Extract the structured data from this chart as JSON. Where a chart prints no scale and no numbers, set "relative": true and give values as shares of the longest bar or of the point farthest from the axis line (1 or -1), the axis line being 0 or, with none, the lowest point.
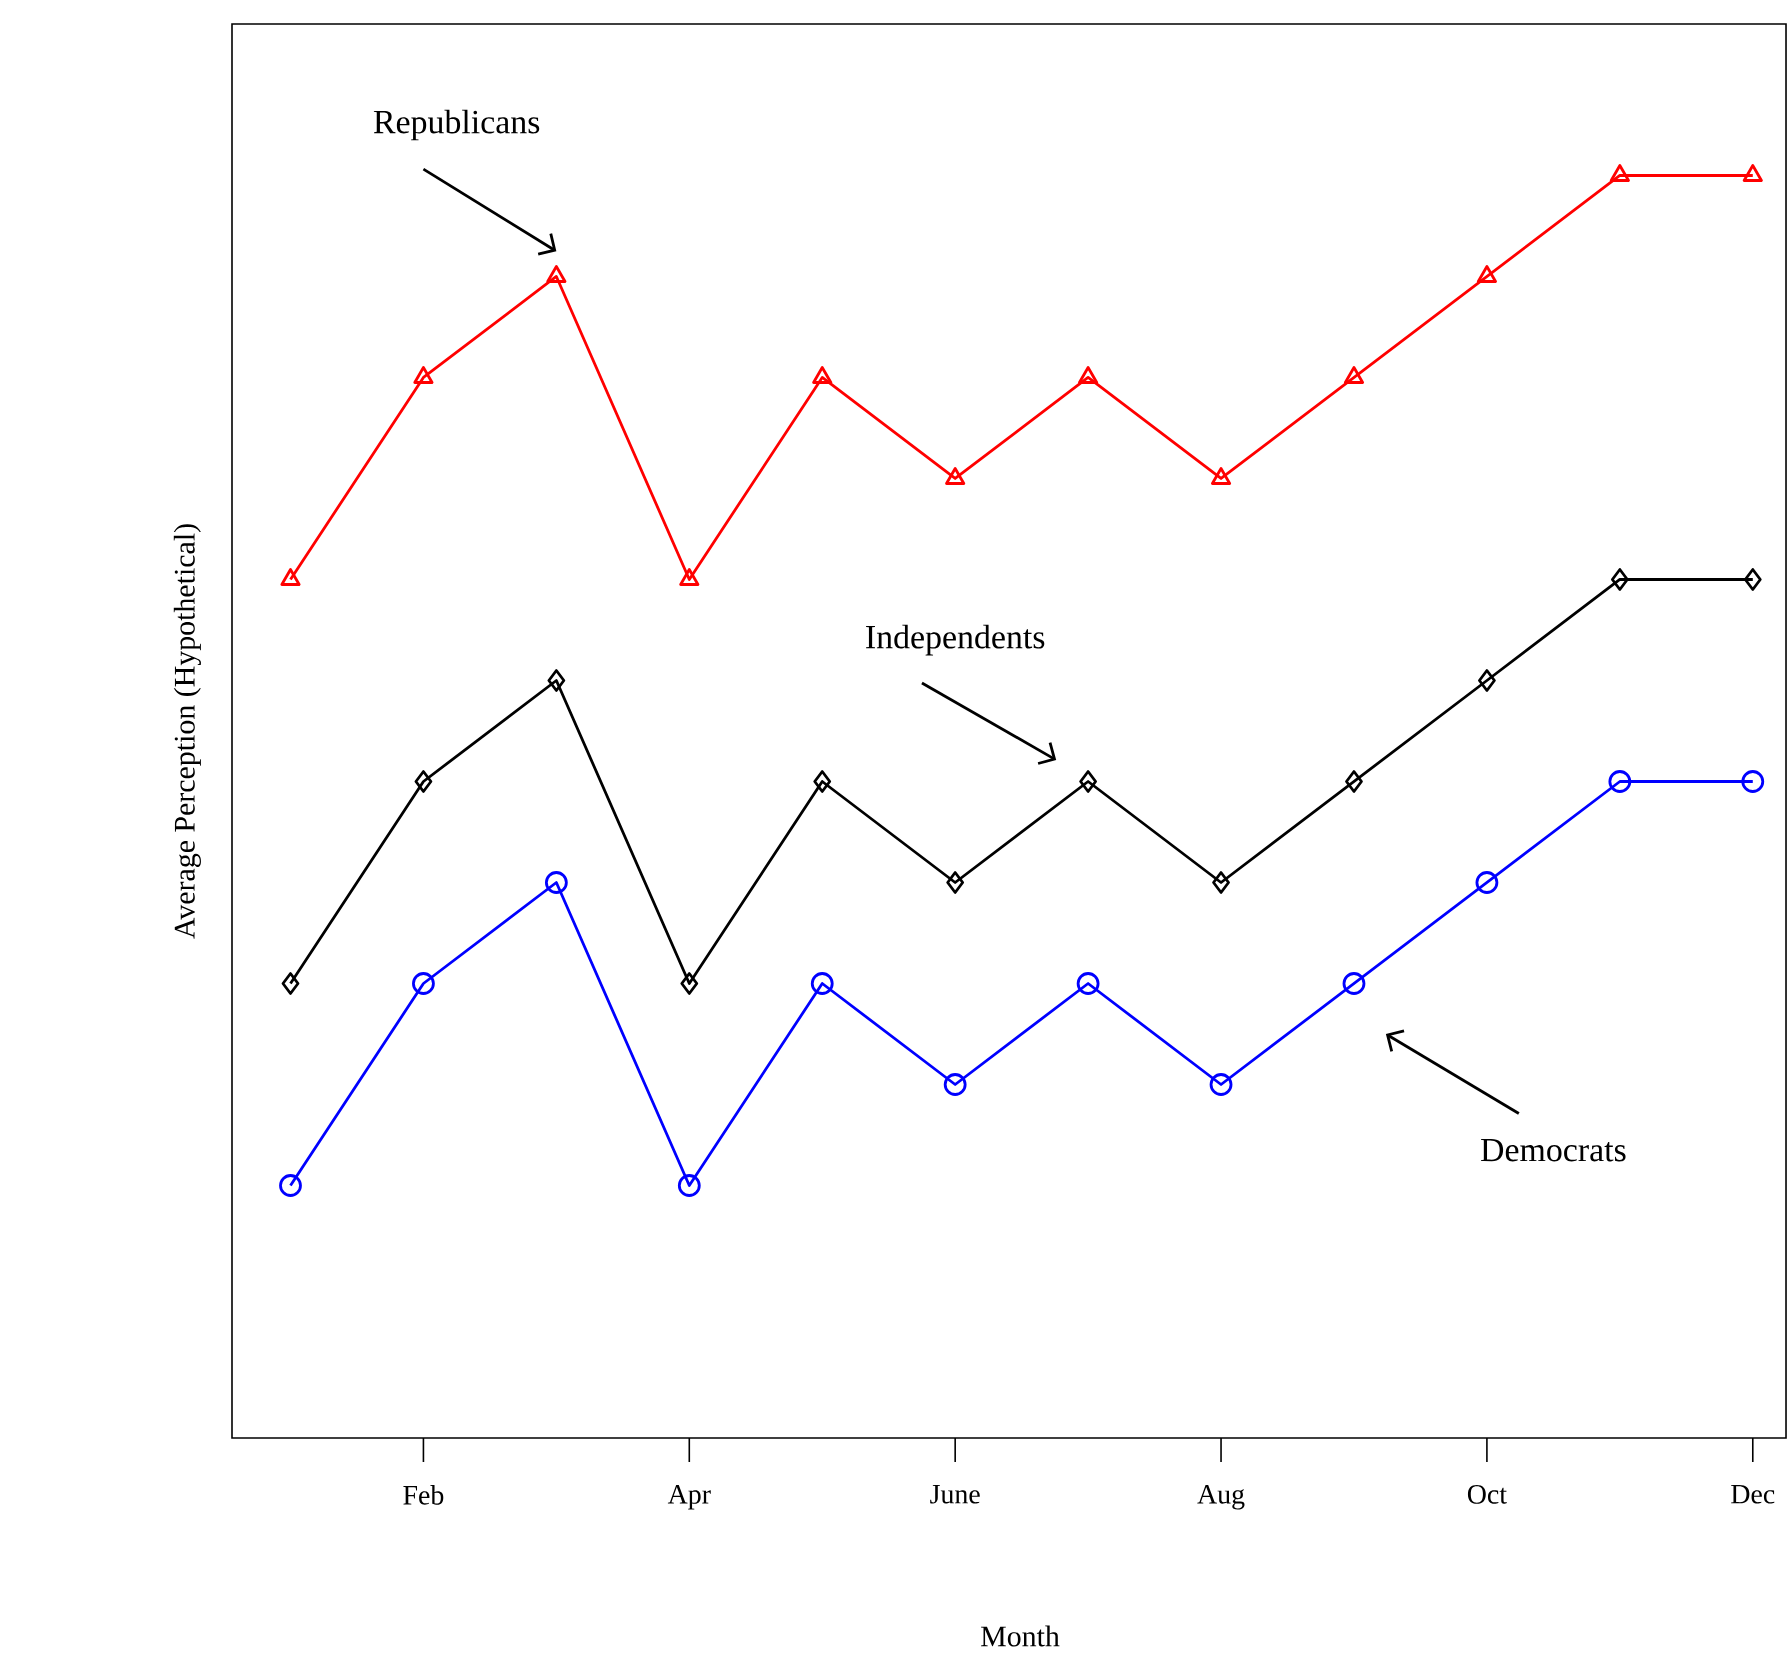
{
  "chart_data": {
    "type": "line",
    "relative": true,
    "xlabel": "Month",
    "ylabel": "Average Perception (Hypothetical)",
    "categories": [
      null,
      "Feb",
      null,
      "Apr",
      null,
      "June",
      null,
      "Aug",
      null,
      "Oct",
      null,
      "Dec"
    ],
    "series": [
      {
        "color": "#ff0000",
        "marker": "triangle",
        "values": [
          0.68,
          0.84,
          0.92,
          0.68,
          0.84,
          0.76,
          0.84,
          0.76,
          0.84,
          0.92,
          1,
          1
        ]
      },
      {
        "color": "#000000",
        "marker": "diamond",
        "values": [
          0.36,
          0.52,
          0.6,
          0.36,
          0.52,
          0.44,
          0.52,
          0.44,
          0.52,
          0.6,
          0.68,
          0.68
        ]
      },
      {
        "color": "#0000ff",
        "marker": "circle",
        "values": [
          0.2,
          0.36,
          0.44,
          0.2,
          0.36,
          0.28,
          0.36,
          0.28,
          0.36,
          0.44,
          0.52,
          0.52
        ]
      }
    ],
    "annotations": [
      "Republicans",
      "Independents",
      "Democrats"
    ],
    "line_style": "solid"
  }
}
